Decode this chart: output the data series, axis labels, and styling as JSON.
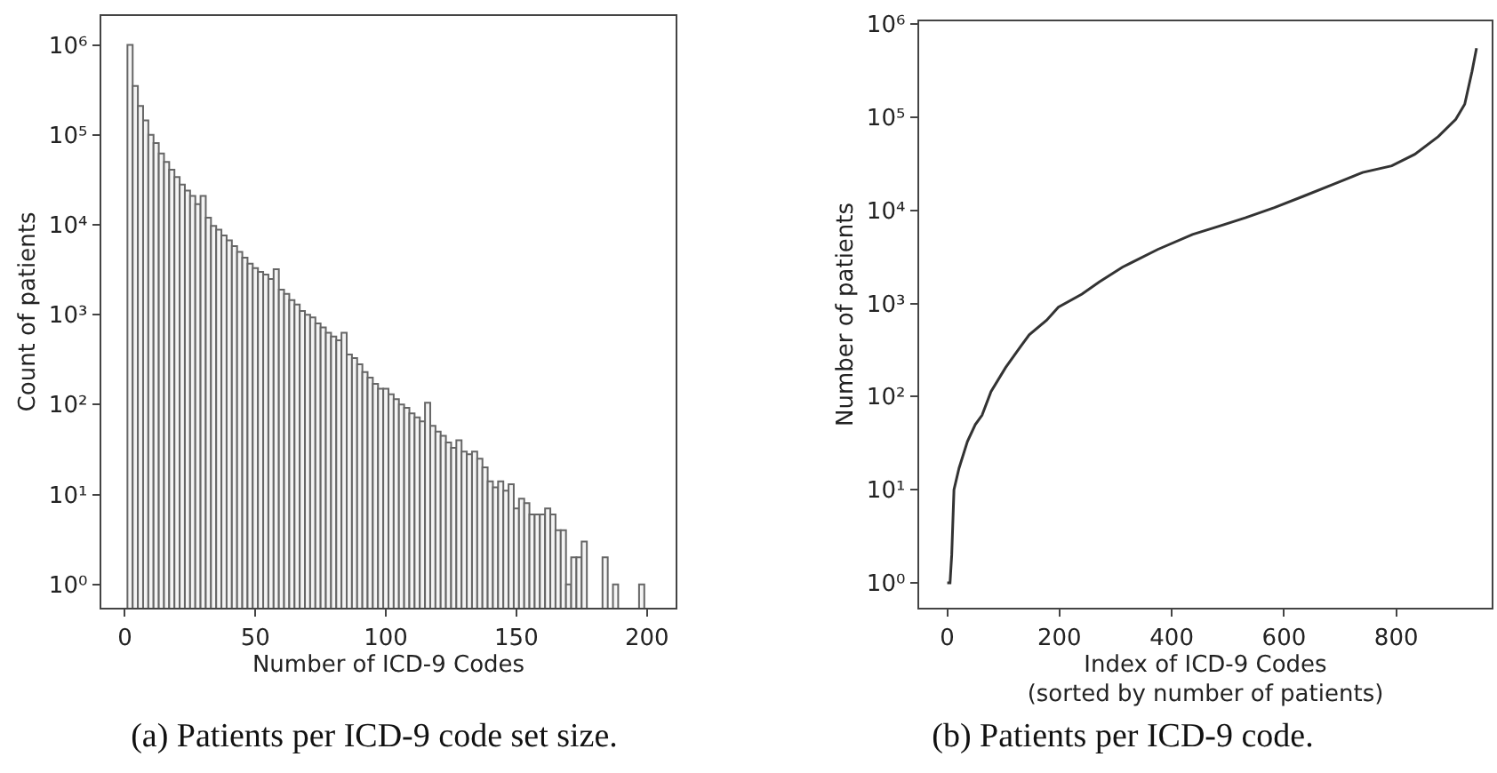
{
  "chart_data": [
    {
      "type": "histogram",
      "xlabel": "Number of ICD-9 Codes",
      "ylabel": "Count of patients",
      "annotations": [
        "(a) Patients per ICD-9 code set size."
      ],
      "color": "#f4f4f4",
      "log": "y",
      "grid": false,
      "bins": [
        1,
        3,
        5,
        7,
        9,
        11,
        13,
        15,
        17,
        19,
        21,
        23,
        25,
        27,
        29,
        31,
        33,
        35,
        37,
        39,
        41,
        43,
        45,
        47,
        49,
        51,
        53,
        55,
        57,
        59,
        61,
        63,
        65,
        67,
        69,
        71,
        73,
        75,
        77,
        79,
        81,
        83,
        85,
        87,
        89,
        91,
        93,
        95,
        97,
        99,
        101,
        103,
        105,
        107,
        109,
        111,
        113,
        115,
        117,
        119,
        121,
        123,
        125,
        127,
        129,
        131,
        133,
        135,
        137,
        139,
        141,
        143,
        145,
        147,
        149,
        151,
        153,
        155,
        157,
        159,
        161,
        163,
        165,
        167,
        169,
        171,
        173,
        175,
        177,
        179,
        181,
        183,
        185,
        187,
        189,
        191,
        193,
        195,
        197,
        199,
        201
      ],
      "values": [
        1000000,
        350000,
        210000,
        145000,
        100000,
        81000,
        62000,
        50000,
        41000,
        34000,
        28000,
        24000,
        21000,
        17000,
        21000,
        12000,
        9700,
        8800,
        7600,
        6700,
        5800,
        5000,
        4300,
        3700,
        3300,
        3000,
        2800,
        2500,
        3200,
        1900,
        1700,
        1450,
        1300,
        1100,
        1000,
        930,
        800,
        720,
        630,
        570,
        520,
        630,
        360,
        330,
        280,
        230,
        200,
        170,
        150,
        150,
        130,
        115,
        100,
        92,
        80,
        72,
        65,
        105,
        58,
        50,
        45,
        38,
        33,
        40,
        30,
        28,
        30,
        25,
        20,
        14,
        12,
        14,
        11,
        13,
        7,
        9,
        8,
        6,
        6,
        6,
        7,
        6,
        4,
        4,
        1,
        2,
        2,
        3,
        null,
        null,
        null,
        2,
        null,
        1,
        null,
        null,
        null,
        null,
        1,
        null
      ],
      "xlim": [
        -9,
        211
      ],
      "xticks": [
        0,
        50,
        100,
        150,
        200
      ],
      "ylim": [
        0.55,
        2100000
      ],
      "yticks": [
        {
          "value": 1,
          "label": "10⁰"
        },
        {
          "value": 10,
          "label": "10¹"
        },
        {
          "value": 100,
          "label": "10²"
        },
        {
          "value": 1000,
          "label": "10³"
        },
        {
          "value": 10000,
          "label": "10⁴"
        },
        {
          "value": 100000,
          "label": "10⁵"
        },
        {
          "value": 1000000,
          "label": "10⁶"
        }
      ]
    },
    {
      "type": "line",
      "xlabel": "Index of ICD-9 Codes\n(sorted by number of patients)",
      "ylabel": "Number of patients",
      "annotations": [
        "(b) Patients per ICD-9 code."
      ],
      "log": "y",
      "grid": false,
      "marker": "none",
      "line_style": "solid",
      "series": [
        {
          "color": "#333333",
          "x": [
            0,
            5,
            8,
            12,
            21,
            36,
            50,
            62,
            78,
            104,
            130,
            146,
            177,
            198,
            240,
            271,
            312,
            375,
            437,
            479,
            531,
            583,
            635,
            688,
            740,
            792,
            833,
            875,
            906,
            922,
            935,
            943
          ],
          "values": [
            1,
            1,
            2,
            10,
            17,
            33,
            50,
            63,
            113,
            205,
            340,
            460,
            660,
            910,
            1260,
            1700,
            2450,
            3800,
            5500,
            6600,
            8300,
            10700,
            14200,
            19000,
            25500,
            30000,
            40000,
            62000,
            95000,
            138000,
            310000,
            550000
          ]
        }
      ],
      "xlim": [
        -50,
        970
      ],
      "xticks": [
        0,
        200,
        400,
        600,
        800
      ],
      "ylim": [
        0.54,
        1070000
      ],
      "yticks": [
        {
          "value": 1,
          "label": "10⁰"
        },
        {
          "value": 10,
          "label": "10¹"
        },
        {
          "value": 100,
          "label": "10²"
        },
        {
          "value": 1000,
          "label": "10³"
        },
        {
          "value": 10000,
          "label": "10⁴"
        },
        {
          "value": 100000,
          "label": "10⁵"
        },
        {
          "value": 1000000,
          "label": "10⁶"
        }
      ]
    }
  ]
}
